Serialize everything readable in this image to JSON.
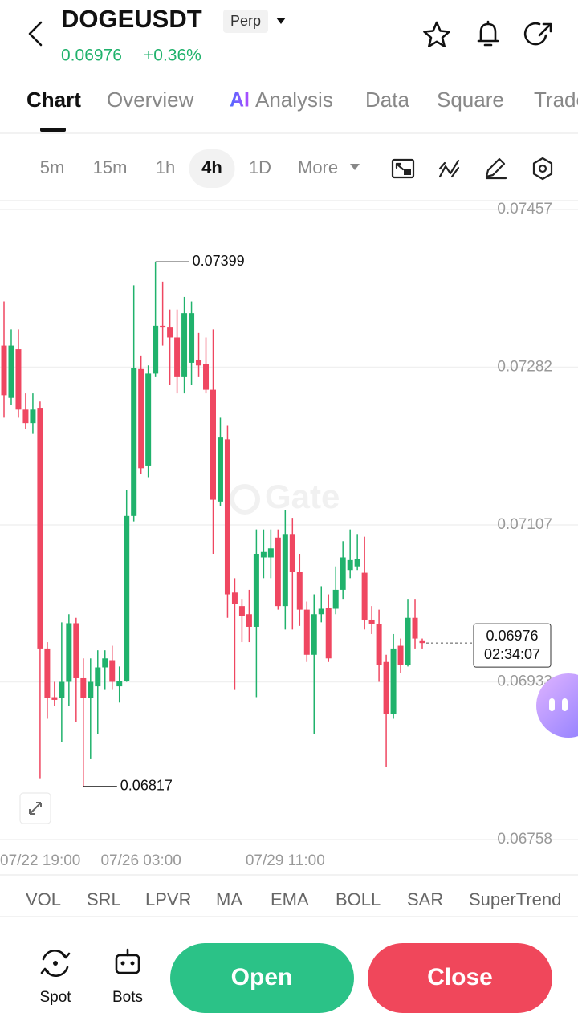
{
  "header": {
    "symbol": "DOGEUSDT",
    "contract": "Perp",
    "price": "0.06976",
    "change": "+0.36%"
  },
  "tabs": [
    {
      "label": "Chart"
    },
    {
      "label": "Overview"
    },
    {
      "badge": "AI",
      "label": "Analysis"
    },
    {
      "label": "Data"
    },
    {
      "label": "Square"
    },
    {
      "label": "Trade"
    }
  ],
  "active_tab": 0,
  "timeframes": [
    "5m",
    "15m",
    "1h",
    "4h",
    "1D",
    "More"
  ],
  "active_timeframe": 3,
  "indicators": [
    "VOL",
    "SRL",
    "LPVR",
    "MA",
    "EMA",
    "BOLL",
    "SAR",
    "SuperTrend"
  ],
  "actions": {
    "spot": "Spot",
    "bots": "Bots",
    "open": "Open",
    "close": "Close"
  },
  "chart_data": {
    "type": "candlestick",
    "watermark": "Gate",
    "up_color": "#20b26c",
    "down_color": "#ef4761",
    "categories": [
      "07/22 19:00",
      null,
      null,
      null,
      null,
      null,
      null,
      null,
      null,
      null,
      null,
      null,
      null,
      null,
      null,
      null,
      null,
      null,
      null,
      "07/26 03:00",
      null,
      null,
      null,
      null,
      null,
      null,
      null,
      null,
      null,
      null,
      null,
      null,
      null,
      null,
      null,
      null,
      null,
      null,
      null,
      "07/29 11:00",
      null,
      null,
      null,
      null,
      null,
      null,
      null,
      null,
      null,
      null,
      null,
      null,
      null,
      null,
      null,
      null,
      null,
      null,
      null
    ],
    "open": [
      0.07306,
      0.07248,
      0.07302,
      0.07235,
      0.0722,
      0.07237,
      0.0697,
      0.06916,
      0.06915,
      0.06933,
      0.06998,
      0.06937,
      0.06915,
      0.06928,
      0.06949,
      0.06957,
      0.06928,
      0.06934,
      0.07117,
      0.0728,
      0.07173,
      0.07275,
      0.07328,
      0.07326,
      0.07315,
      0.07271,
      0.07287,
      0.0729,
      0.07286,
      0.07257,
      0.07133,
      0.07202,
      0.07032,
      0.07017,
      0.07008,
      0.06994,
      0.07071,
      0.07071,
      0.07093,
      0.07017,
      0.07097,
      0.07055,
      0.07013,
      0.06963,
      0.07008,
      0.07015,
      0.07014,
      0.07035,
      0.07057,
      0.07061,
      0.07054,
      0.07002,
      0.06997,
      0.06955,
      0.06897,
      0.06973,
      0.06952,
      0.07004,
      0.06979
    ],
    "high": [
      0.07355,
      0.07324,
      0.07324,
      0.07253,
      0.07253,
      0.07244,
      0.06977,
      0.06933,
      0.06999,
      0.07008,
      0.07004,
      0.06959,
      0.06959,
      0.06968,
      0.06968,
      0.06973,
      0.0695,
      0.07146,
      0.07373,
      0.07295,
      0.07284,
      0.07399,
      0.07377,
      0.07346,
      0.07346,
      0.0736,
      0.07355,
      0.0732,
      0.07315,
      0.07324,
      0.07226,
      0.07217,
      0.07048,
      0.07025,
      0.07035,
      0.07102,
      0.07102,
      0.07102,
      0.07102,
      0.07124,
      0.07115,
      0.07075,
      0.07022,
      0.0703,
      0.07039,
      0.0703,
      0.07061,
      0.07089,
      0.07102,
      0.07097,
      0.07094,
      0.07017,
      0.07013,
      0.06963,
      0.06986,
      0.06981,
      0.07025,
      0.07025,
      0.06981
    ],
    "low": [
      0.07226,
      0.0724,
      0.07226,
      0.07213,
      0.07208,
      0.06826,
      0.06892,
      0.06906,
      0.06866,
      0.06906,
      0.06888,
      0.06817,
      0.06848,
      0.06875,
      0.06924,
      0.06924,
      0.0691,
      0.06933,
      0.07111,
      0.07164,
      0.0716,
      0.07271,
      0.07306,
      0.07262,
      0.07253,
      0.07253,
      0.07262,
      0.07271,
      0.07253,
      0.07075,
      0.07128,
      0.07004,
      0.06924,
      0.06977,
      0.06977,
      0.06916,
      0.07048,
      0.07048,
      0.07013,
      0.06991,
      0.06991,
      0.06995,
      0.06955,
      0.06875,
      0.06999,
      0.06955,
      0.07008,
      0.07025,
      0.07048,
      0.07057,
      0.06991,
      0.06986,
      0.06933,
      0.06839,
      0.06892,
      0.06943,
      0.0695,
      0.0697,
      0.0697
    ],
    "close": [
      0.07251,
      0.07306,
      0.07235,
      0.0722,
      0.07235,
      0.0697,
      0.06915,
      0.06913,
      0.06933,
      0.06998,
      0.06937,
      0.06915,
      0.06933,
      0.06949,
      0.06959,
      0.06933,
      0.06934,
      0.07117,
      0.07281,
      0.0717,
      0.07275,
      0.07328,
      0.07326,
      0.07315,
      0.07271,
      0.07342,
      0.07342,
      0.07284,
      0.07257,
      0.07135,
      0.07204,
      0.0703,
      0.07019,
      0.07006,
      0.06994,
      0.07075,
      0.07077,
      0.07081,
      0.07017,
      0.07097,
      0.07055,
      0.07013,
      0.06963,
      0.07008,
      0.07014,
      0.06959,
      0.07035,
      0.07071,
      0.07068,
      0.07069,
      0.07002,
      0.06997,
      0.06952,
      0.06897,
      0.0697,
      0.06952,
      0.07004,
      0.06981,
      0.06976
    ],
    "high_marker": 21,
    "low_marker": 11,
    "countdown": "02:34:07",
    "ylim": [
      0.06758,
      0.07457
    ],
    "yticks": [
      0.06758,
      0.06933,
      0.07107,
      0.07282,
      0.07457
    ],
    "grid": true
  }
}
